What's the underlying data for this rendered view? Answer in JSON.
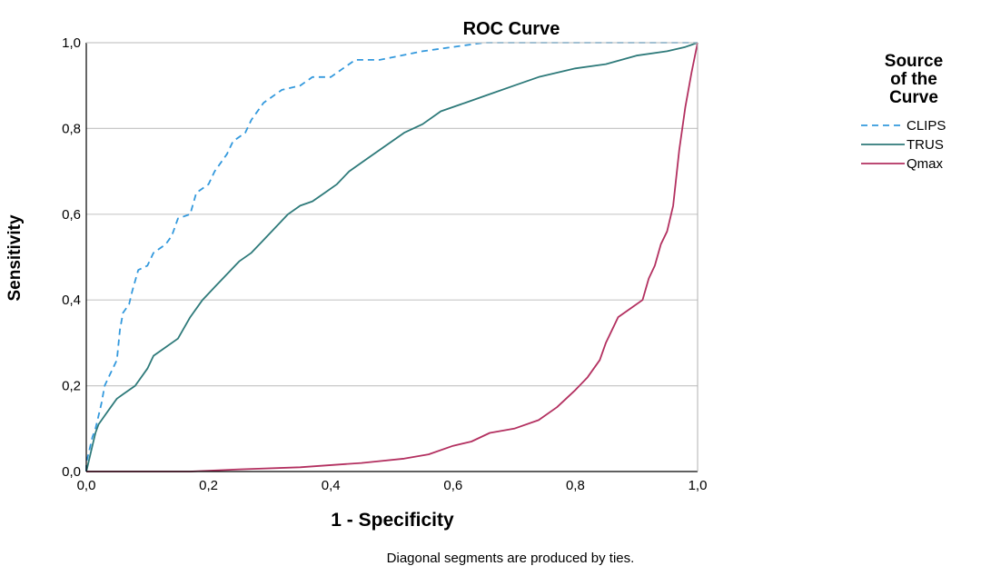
{
  "chart_data": {
    "type": "line",
    "title": "ROC Curve",
    "xlabel": "1 - Specificity",
    "ylabel": "Sensitivity",
    "xlim": [
      0,
      1
    ],
    "ylim": [
      0,
      1
    ],
    "grid": "horizontal",
    "x_ticks": [
      "0,0",
      "0,2",
      "0,4",
      "0,6",
      "0,8",
      "1,0"
    ],
    "y_ticks": [
      "0,0",
      "0,2",
      "0,4",
      "0,6",
      "0,8",
      "1,0"
    ],
    "legend": {
      "title_lines": [
        "Source",
        "of the",
        "Curve"
      ],
      "position": "right"
    },
    "footnote": "Diagonal segments are produced by ties.",
    "series": [
      {
        "name": "CLIPS",
        "color": "#3399dd",
        "style": "dashed",
        "points": [
          [
            0,
            0
          ],
          [
            0,
            0.02
          ],
          [
            0.005,
            0.05
          ],
          [
            0.01,
            0.08
          ],
          [
            0.015,
            0.1
          ],
          [
            0.02,
            0.13
          ],
          [
            0.025,
            0.16
          ],
          [
            0.03,
            0.2
          ],
          [
            0.04,
            0.23
          ],
          [
            0.05,
            0.26
          ],
          [
            0.055,
            0.33
          ],
          [
            0.06,
            0.37
          ],
          [
            0.07,
            0.39
          ],
          [
            0.075,
            0.42
          ],
          [
            0.085,
            0.47
          ],
          [
            0.1,
            0.48
          ],
          [
            0.11,
            0.51
          ],
          [
            0.13,
            0.53
          ],
          [
            0.14,
            0.55
          ],
          [
            0.15,
            0.59
          ],
          [
            0.17,
            0.6
          ],
          [
            0.18,
            0.65
          ],
          [
            0.2,
            0.67
          ],
          [
            0.21,
            0.7
          ],
          [
            0.23,
            0.74
          ],
          [
            0.24,
            0.77
          ],
          [
            0.26,
            0.79
          ],
          [
            0.27,
            0.82
          ],
          [
            0.29,
            0.86
          ],
          [
            0.32,
            0.89
          ],
          [
            0.35,
            0.9
          ],
          [
            0.37,
            0.92
          ],
          [
            0.4,
            0.92
          ],
          [
            0.42,
            0.94
          ],
          [
            0.44,
            0.96
          ],
          [
            0.48,
            0.96
          ],
          [
            0.55,
            0.98
          ],
          [
            0.6,
            0.99
          ],
          [
            0.65,
            1.0
          ],
          [
            1.0,
            1.0
          ]
        ]
      },
      {
        "name": "TRUS",
        "color": "#2e7a7a",
        "style": "solid",
        "points": [
          [
            0,
            0
          ],
          [
            0.005,
            0.03
          ],
          [
            0.01,
            0.06
          ],
          [
            0.015,
            0.09
          ],
          [
            0.02,
            0.11
          ],
          [
            0.03,
            0.13
          ],
          [
            0.04,
            0.15
          ],
          [
            0.05,
            0.17
          ],
          [
            0.06,
            0.18
          ],
          [
            0.08,
            0.2
          ],
          [
            0.1,
            0.24
          ],
          [
            0.11,
            0.27
          ],
          [
            0.13,
            0.29
          ],
          [
            0.15,
            0.31
          ],
          [
            0.17,
            0.36
          ],
          [
            0.19,
            0.4
          ],
          [
            0.21,
            0.43
          ],
          [
            0.23,
            0.46
          ],
          [
            0.25,
            0.49
          ],
          [
            0.27,
            0.51
          ],
          [
            0.29,
            0.54
          ],
          [
            0.31,
            0.57
          ],
          [
            0.33,
            0.6
          ],
          [
            0.35,
            0.62
          ],
          [
            0.37,
            0.63
          ],
          [
            0.39,
            0.65
          ],
          [
            0.41,
            0.67
          ],
          [
            0.43,
            0.7
          ],
          [
            0.46,
            0.73
          ],
          [
            0.49,
            0.76
          ],
          [
            0.52,
            0.79
          ],
          [
            0.55,
            0.81
          ],
          [
            0.58,
            0.84
          ],
          [
            0.62,
            0.86
          ],
          [
            0.66,
            0.88
          ],
          [
            0.7,
            0.9
          ],
          [
            0.74,
            0.92
          ],
          [
            0.8,
            0.94
          ],
          [
            0.85,
            0.95
          ],
          [
            0.9,
            0.97
          ],
          [
            0.95,
            0.98
          ],
          [
            0.98,
            0.99
          ],
          [
            1.0,
            1.0
          ]
        ]
      },
      {
        "name": "Qmax",
        "color": "#b33060",
        "style": "solid",
        "points": [
          [
            0,
            0
          ],
          [
            0.17,
            0.0
          ],
          [
            0.25,
            0.005
          ],
          [
            0.35,
            0.01
          ],
          [
            0.45,
            0.02
          ],
          [
            0.52,
            0.03
          ],
          [
            0.56,
            0.04
          ],
          [
            0.6,
            0.06
          ],
          [
            0.63,
            0.07
          ],
          [
            0.66,
            0.09
          ],
          [
            0.7,
            0.1
          ],
          [
            0.74,
            0.12
          ],
          [
            0.77,
            0.15
          ],
          [
            0.8,
            0.19
          ],
          [
            0.82,
            0.22
          ],
          [
            0.84,
            0.26
          ],
          [
            0.85,
            0.3
          ],
          [
            0.86,
            0.33
          ],
          [
            0.87,
            0.36
          ],
          [
            0.89,
            0.38
          ],
          [
            0.91,
            0.4
          ],
          [
            0.92,
            0.45
          ],
          [
            0.93,
            0.48
          ],
          [
            0.94,
            0.53
          ],
          [
            0.95,
            0.56
          ],
          [
            0.96,
            0.62
          ],
          [
            0.97,
            0.75
          ],
          [
            0.98,
            0.85
          ],
          [
            0.99,
            0.93
          ],
          [
            1.0,
            1.0
          ]
        ]
      }
    ]
  }
}
